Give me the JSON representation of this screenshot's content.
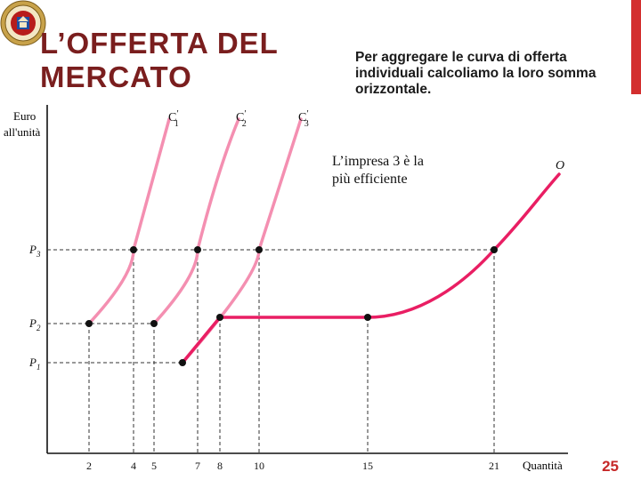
{
  "slide": {
    "title_line1": "L’OFFERTA DEL",
    "title_line2": "MERCATO",
    "description": "Per aggregare le curva di offerta individuali calcoliamo la loro somma orizzontale.",
    "page_number": "25",
    "accent_color": "#d32f2f"
  },
  "diagram": {
    "y_axis_label_line1": "Euro",
    "y_axis_label_line2": "all'unità",
    "x_axis_label": "Quantità",
    "curve_labels": {
      "c1": "C",
      "c2": "C",
      "c3": "C",
      "market": "O"
    },
    "curve_subscripts": {
      "c1": "1",
      "c2": "2",
      "c3": "3"
    },
    "curve_primes": {
      "c1": "′",
      "c2": "′",
      "c3": "′"
    },
    "annotation_line1": "L’impresa 3 è la",
    "annotation_line2": "più efficiente",
    "y_tick_labels": {
      "p3": "P",
      "p3_sub": "3",
      "p2": "P",
      "p2_sub": "2",
      "p1": "P",
      "p1_sub": "1"
    },
    "x_ticks": [
      "2",
      "4",
      "5",
      "7",
      "8",
      "10",
      "15",
      "21"
    ],
    "colors": {
      "individual_curves": "#f48fb1",
      "market_curve": "#e91e63",
      "axes": "#111111"
    }
  }
}
